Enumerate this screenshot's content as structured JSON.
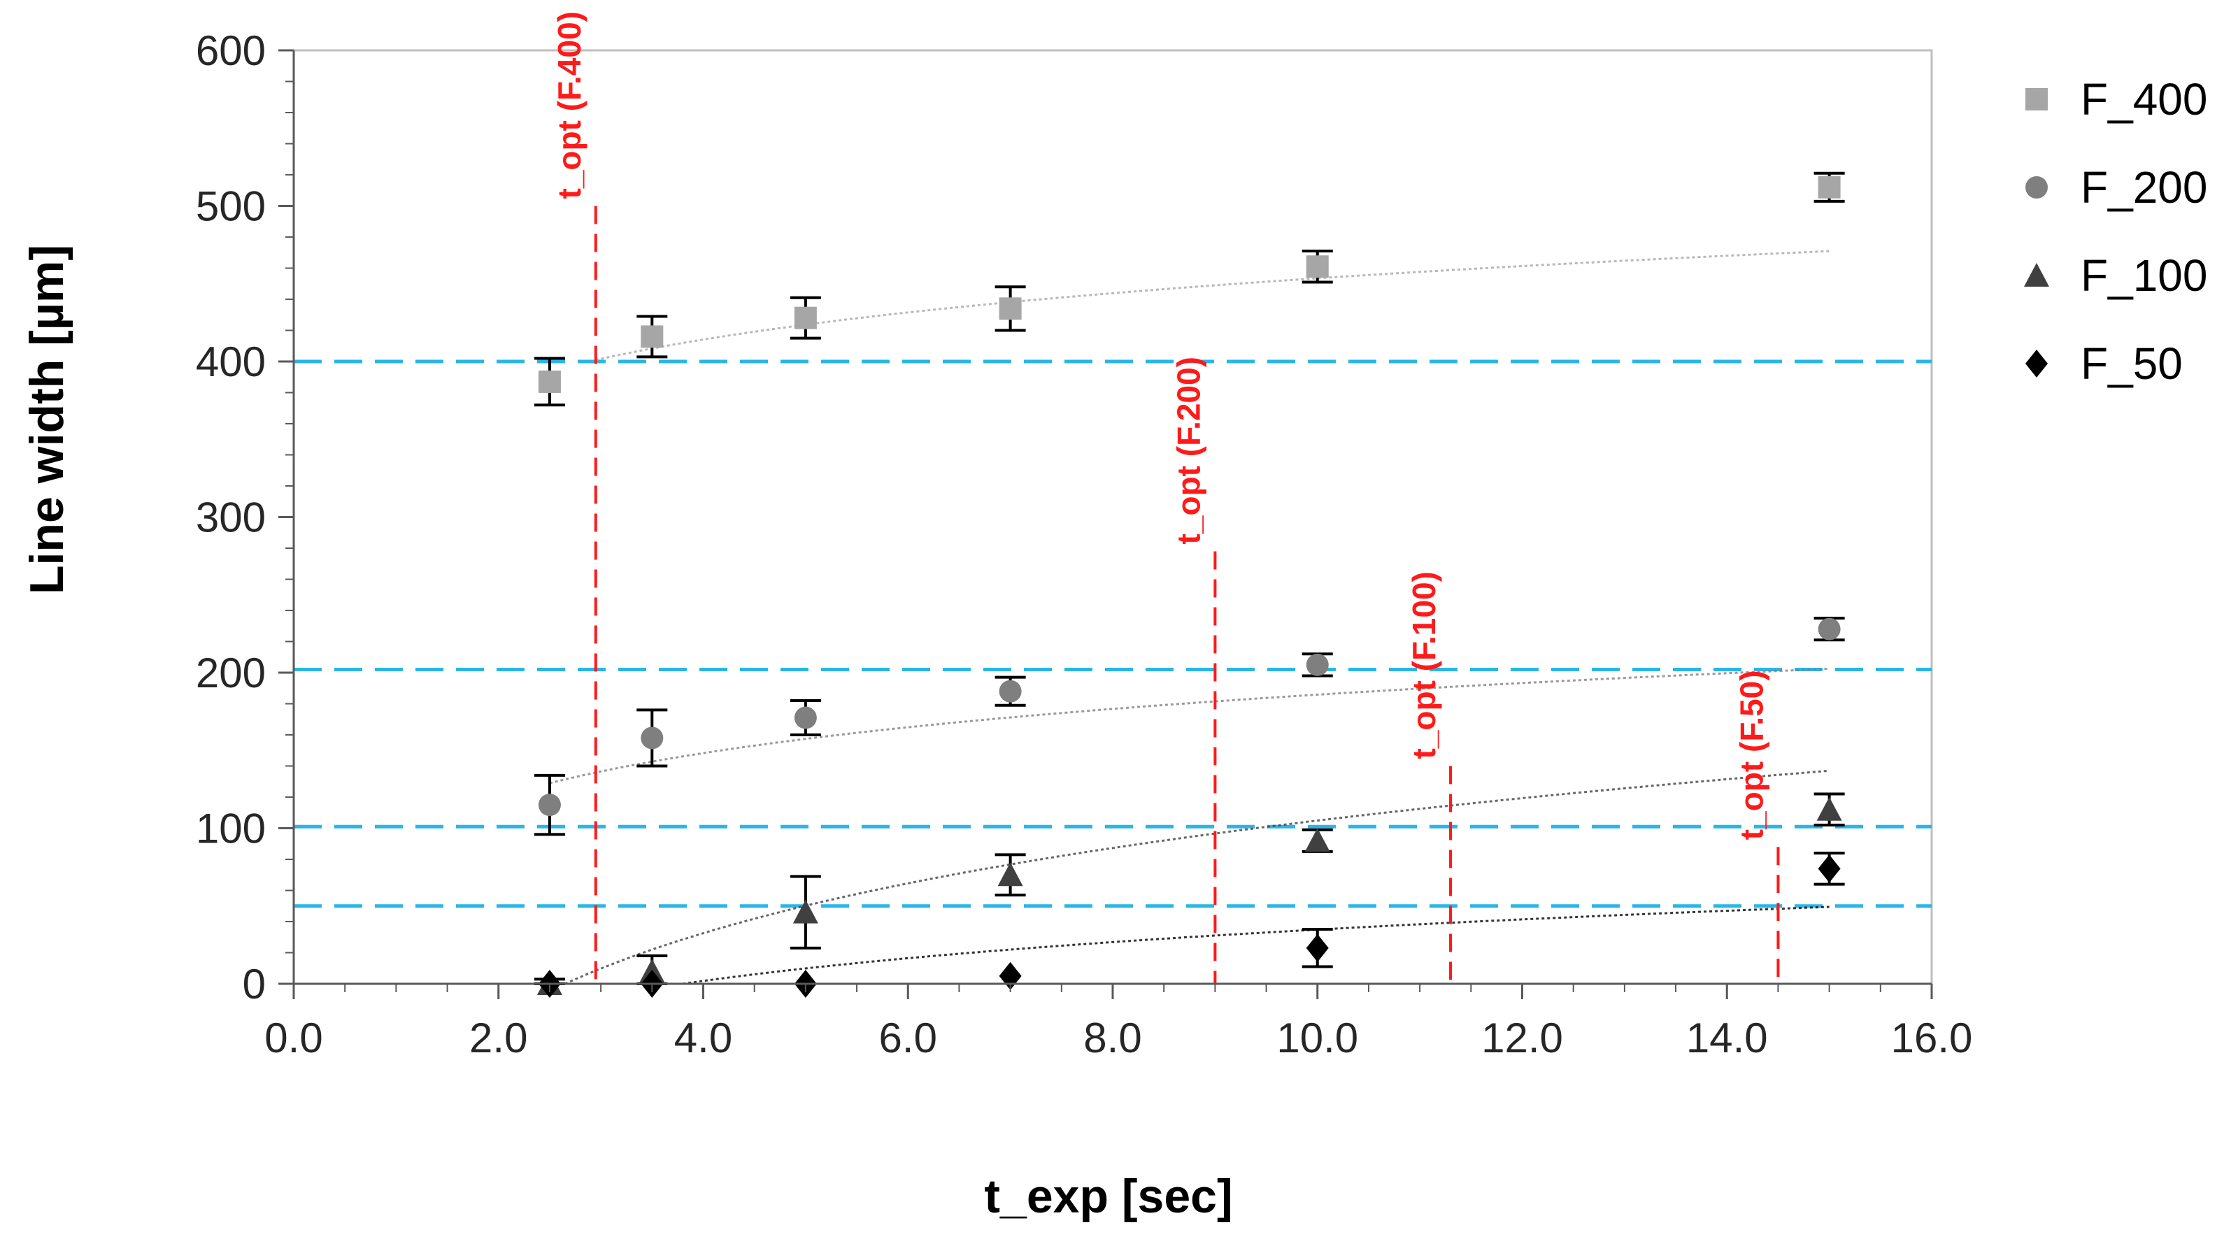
{
  "chart_data": {
    "type": "scatter",
    "title": "",
    "xlabel": "t_exp [sec]",
    "ylabel": "Line width [µm]",
    "xlim": [
      0,
      16
    ],
    "ylim": [
      0,
      600
    ],
    "x_ticks": [
      "0.0",
      "2.0",
      "4.0",
      "6.0",
      "8.0",
      "10.0",
      "12.0",
      "14.0",
      "16.0"
    ],
    "y_ticks": [
      "0",
      "100",
      "200",
      "300",
      "400",
      "500",
      "600"
    ],
    "legend_position": "right",
    "series": [
      {
        "name": "F_400",
        "marker": "square",
        "color": "#a6a6a6",
        "x": [
          2.5,
          3.5,
          5,
          7,
          10,
          15
        ],
        "y": [
          387,
          416,
          428,
          434,
          461,
          512
        ],
        "err": [
          15,
          13,
          13,
          14,
          10,
          9
        ],
        "trend": {
          "a": 401,
          "b": 43,
          "x0": 2.95
        }
      },
      {
        "name": "F_200",
        "marker": "circle",
        "color": "#7f7f7f",
        "x": [
          2.5,
          3.5,
          5,
          7,
          10,
          15
        ],
        "y": [
          115,
          158,
          171,
          188,
          205,
          228
        ],
        "err": [
          19,
          18,
          11,
          9,
          7,
          7
        ],
        "trend": {
          "a": 129,
          "b": 41,
          "x0": 2.5
        }
      },
      {
        "name": "F_100",
        "marker": "triangle",
        "color": "#404040",
        "x": [
          2.5,
          3.5,
          5,
          7,
          10,
          15
        ],
        "y": [
          0,
          8,
          46,
          70,
          92,
          112
        ],
        "err": [
          3,
          10,
          23,
          13,
          7,
          10
        ],
        "trend": {
          "a": 0,
          "b": 79,
          "x0": 2.65
        }
      },
      {
        "name": "F_50",
        "marker": "diamond",
        "color": "#000000",
        "x": [
          2.5,
          3.5,
          5,
          7,
          10,
          15
        ],
        "y": [
          0,
          0,
          0,
          5,
          23,
          74
        ],
        "err": [
          0,
          0,
          0,
          0,
          12,
          10
        ],
        "trend": {
          "a": 0,
          "b": 36,
          "x0": 3.8
        }
      }
    ],
    "reference_lines": [
      {
        "axis": "y",
        "value": 400,
        "color": "#29b6e6"
      },
      {
        "axis": "y",
        "value": 202,
        "color": "#29b6e6"
      },
      {
        "axis": "y",
        "value": 101,
        "color": "#29b6e6"
      },
      {
        "axis": "y",
        "value": 50,
        "color": "#29b6e6"
      }
    ],
    "annotations": [
      {
        "label": "t_opt (F.400)",
        "x": 2.95,
        "y_top": 500,
        "color": "#ff1a1a"
      },
      {
        "label": "t_opt (F.200)",
        "x": 9.0,
        "y_top": 278,
        "color": "#ff1a1a"
      },
      {
        "label": "t_opt (F.100)",
        "x": 11.3,
        "y_top": 140,
        "color": "#ff1a1a"
      },
      {
        "label": "t_opt (F.50)",
        "x": 14.5,
        "y_top": 88,
        "color": "#ff1a1a"
      }
    ]
  }
}
